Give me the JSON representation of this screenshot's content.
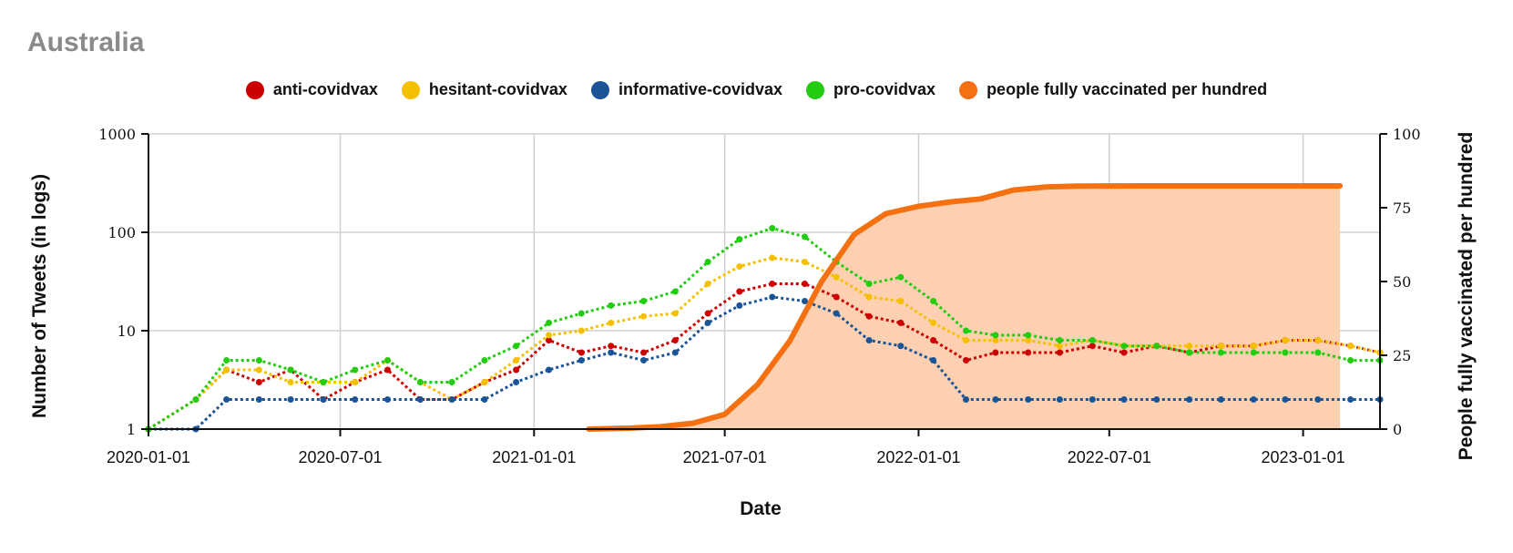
{
  "chart_data": {
    "type": "line",
    "title": "Australia",
    "xlabel": "Date",
    "ylabel": "Number of Tweets (in logs)",
    "y2label": "People fully vaccinated per hundred",
    "xlim": [
      "2020-01-01",
      "2023-03-15"
    ],
    "x_ticks": [
      "2020-01-01",
      "2020-07-01",
      "2021-01-01",
      "2021-07-01",
      "2022-01-01",
      "2022-07-01",
      "2023-01-01"
    ],
    "y_scale": "log",
    "ylim": [
      1,
      1000
    ],
    "y_ticks": [
      "1",
      "10",
      "100",
      "1000"
    ],
    "y2lim": [
      0,
      100
    ],
    "y2_ticks": [
      "0",
      "25",
      "50",
      "75",
      "100"
    ],
    "grid": true,
    "legend_position": "top",
    "series": [
      {
        "name": "anti-covidvax",
        "color": "#cc0000",
        "axis": "left",
        "points": [
          [
            "2020-01-01",
            1
          ],
          [
            "2020-02-15",
            2
          ],
          [
            "2020-03-15",
            4
          ],
          [
            "2020-04-15",
            3
          ],
          [
            "2020-05-15",
            4
          ],
          [
            "2020-06-15",
            2
          ],
          [
            "2020-07-15",
            3
          ],
          [
            "2020-08-15",
            4
          ],
          [
            "2020-09-15",
            2
          ],
          [
            "2020-10-15",
            2
          ],
          [
            "2020-11-15",
            3
          ],
          [
            "2020-12-15",
            4
          ],
          [
            "2021-01-15",
            8
          ],
          [
            "2021-02-15",
            6
          ],
          [
            "2021-03-15",
            7
          ],
          [
            "2021-04-15",
            6
          ],
          [
            "2021-05-15",
            8
          ],
          [
            "2021-06-15",
            15
          ],
          [
            "2021-07-15",
            25
          ],
          [
            "2021-08-15",
            30
          ],
          [
            "2021-09-15",
            30
          ],
          [
            "2021-10-15",
            22
          ],
          [
            "2021-11-15",
            14
          ],
          [
            "2021-12-15",
            12
          ],
          [
            "2022-01-15",
            8
          ],
          [
            "2022-02-15",
            5
          ],
          [
            "2022-03-15",
            6
          ],
          [
            "2022-04-15",
            6
          ],
          [
            "2022-05-15",
            6
          ],
          [
            "2022-06-15",
            7
          ],
          [
            "2022-07-15",
            6
          ],
          [
            "2022-08-15",
            7
          ],
          [
            "2022-09-15",
            6
          ],
          [
            "2022-10-15",
            7
          ],
          [
            "2022-11-15",
            7
          ],
          [
            "2022-12-15",
            8
          ],
          [
            "2023-01-15",
            8
          ],
          [
            "2023-02-15",
            7
          ],
          [
            "2023-03-15",
            6
          ]
        ]
      },
      {
        "name": "hesitant-covidvax",
        "color": "#f5c000",
        "axis": "left",
        "points": [
          [
            "2020-01-01",
            1
          ],
          [
            "2020-02-15",
            2
          ],
          [
            "2020-03-15",
            4
          ],
          [
            "2020-04-15",
            4
          ],
          [
            "2020-05-15",
            3
          ],
          [
            "2020-06-15",
            3
          ],
          [
            "2020-07-15",
            3
          ],
          [
            "2020-08-15",
            5
          ],
          [
            "2020-09-15",
            3
          ],
          [
            "2020-10-15",
            2
          ],
          [
            "2020-11-15",
            3
          ],
          [
            "2020-12-15",
            5
          ],
          [
            "2021-01-15",
            9
          ],
          [
            "2021-02-15",
            10
          ],
          [
            "2021-03-15",
            12
          ],
          [
            "2021-04-15",
            14
          ],
          [
            "2021-05-15",
            15
          ],
          [
            "2021-06-15",
            30
          ],
          [
            "2021-07-15",
            45
          ],
          [
            "2021-08-15",
            55
          ],
          [
            "2021-09-15",
            50
          ],
          [
            "2021-10-15",
            35
          ],
          [
            "2021-11-15",
            22
          ],
          [
            "2021-12-15",
            20
          ],
          [
            "2022-01-15",
            12
          ],
          [
            "2022-02-15",
            8
          ],
          [
            "2022-03-15",
            8
          ],
          [
            "2022-04-15",
            8
          ],
          [
            "2022-05-15",
            7
          ],
          [
            "2022-06-15",
            8
          ],
          [
            "2022-07-15",
            7
          ],
          [
            "2022-08-15",
            7
          ],
          [
            "2022-09-15",
            7
          ],
          [
            "2022-10-15",
            7
          ],
          [
            "2022-11-15",
            7
          ],
          [
            "2022-12-15",
            8
          ],
          [
            "2023-01-15",
            8
          ],
          [
            "2023-02-15",
            7
          ],
          [
            "2023-03-15",
            6
          ]
        ]
      },
      {
        "name": "informative-covidvax",
        "color": "#1a5496",
        "axis": "left",
        "points": [
          [
            "2020-01-01",
            1
          ],
          [
            "2020-02-15",
            1
          ],
          [
            "2020-03-15",
            2
          ],
          [
            "2020-04-15",
            2
          ],
          [
            "2020-05-15",
            2
          ],
          [
            "2020-06-15",
            2
          ],
          [
            "2020-07-15",
            2
          ],
          [
            "2020-08-15",
            2
          ],
          [
            "2020-09-15",
            2
          ],
          [
            "2020-10-15",
            2
          ],
          [
            "2020-11-15",
            2
          ],
          [
            "2020-12-15",
            3
          ],
          [
            "2021-01-15",
            4
          ],
          [
            "2021-02-15",
            5
          ],
          [
            "2021-03-15",
            6
          ],
          [
            "2021-04-15",
            5
          ],
          [
            "2021-05-15",
            6
          ],
          [
            "2021-06-15",
            12
          ],
          [
            "2021-07-15",
            18
          ],
          [
            "2021-08-15",
            22
          ],
          [
            "2021-09-15",
            20
          ],
          [
            "2021-10-15",
            15
          ],
          [
            "2021-11-15",
            8
          ],
          [
            "2021-12-15",
            7
          ],
          [
            "2022-01-15",
            5
          ],
          [
            "2022-02-15",
            2
          ],
          [
            "2022-03-15",
            2
          ],
          [
            "2022-04-15",
            2
          ],
          [
            "2022-05-15",
            2
          ],
          [
            "2022-06-15",
            2
          ],
          [
            "2022-07-15",
            2
          ],
          [
            "2022-08-15",
            2
          ],
          [
            "2022-09-15",
            2
          ],
          [
            "2022-10-15",
            2
          ],
          [
            "2022-11-15",
            2
          ],
          [
            "2022-12-15",
            2
          ],
          [
            "2023-01-15",
            2
          ],
          [
            "2023-02-15",
            2
          ],
          [
            "2023-03-15",
            2
          ]
        ]
      },
      {
        "name": "pro-covidvax",
        "color": "#22cc11",
        "axis": "left",
        "points": [
          [
            "2020-01-01",
            1
          ],
          [
            "2020-02-15",
            2
          ],
          [
            "2020-03-15",
            5
          ],
          [
            "2020-04-15",
            5
          ],
          [
            "2020-05-15",
            4
          ],
          [
            "2020-06-15",
            3
          ],
          [
            "2020-07-15",
            4
          ],
          [
            "2020-08-15",
            5
          ],
          [
            "2020-09-15",
            3
          ],
          [
            "2020-10-15",
            3
          ],
          [
            "2020-11-15",
            5
          ],
          [
            "2020-12-15",
            7
          ],
          [
            "2021-01-15",
            12
          ],
          [
            "2021-02-15",
            15
          ],
          [
            "2021-03-15",
            18
          ],
          [
            "2021-04-15",
            20
          ],
          [
            "2021-05-15",
            25
          ],
          [
            "2021-06-15",
            50
          ],
          [
            "2021-07-15",
            85
          ],
          [
            "2021-08-15",
            110
          ],
          [
            "2021-09-15",
            90
          ],
          [
            "2021-10-15",
            50
          ],
          [
            "2021-11-15",
            30
          ],
          [
            "2021-12-15",
            35
          ],
          [
            "2022-01-15",
            20
          ],
          [
            "2022-02-15",
            10
          ],
          [
            "2022-03-15",
            9
          ],
          [
            "2022-04-15",
            9
          ],
          [
            "2022-05-15",
            8
          ],
          [
            "2022-06-15",
            8
          ],
          [
            "2022-07-15",
            7
          ],
          [
            "2022-08-15",
            7
          ],
          [
            "2022-09-15",
            6
          ],
          [
            "2022-10-15",
            6
          ],
          [
            "2022-11-15",
            6
          ],
          [
            "2022-12-15",
            6
          ],
          [
            "2023-01-15",
            6
          ],
          [
            "2023-02-15",
            5
          ],
          [
            "2023-03-15",
            5
          ]
        ]
      },
      {
        "name": "people fully vaccinated per hundred",
        "color": "#f57010",
        "fill_color": "#fcd0b0",
        "axis": "right",
        "points": [
          [
            "2021-02-22",
            0
          ],
          [
            "2021-04-01",
            0.3
          ],
          [
            "2021-05-01",
            0.8
          ],
          [
            "2021-06-01",
            2
          ],
          [
            "2021-07-01",
            5
          ],
          [
            "2021-08-01",
            15
          ],
          [
            "2021-09-01",
            30
          ],
          [
            "2021-10-01",
            50
          ],
          [
            "2021-11-01",
            66
          ],
          [
            "2021-12-01",
            73
          ],
          [
            "2022-01-01",
            75.5
          ],
          [
            "2022-02-01",
            77
          ],
          [
            "2022-03-01",
            78
          ],
          [
            "2022-04-01",
            81
          ],
          [
            "2022-05-01",
            82
          ],
          [
            "2022-06-01",
            82.3
          ],
          [
            "2022-08-01",
            82.4
          ],
          [
            "2023-01-01",
            82.4
          ],
          [
            "2023-02-05",
            82.4
          ]
        ]
      }
    ]
  }
}
